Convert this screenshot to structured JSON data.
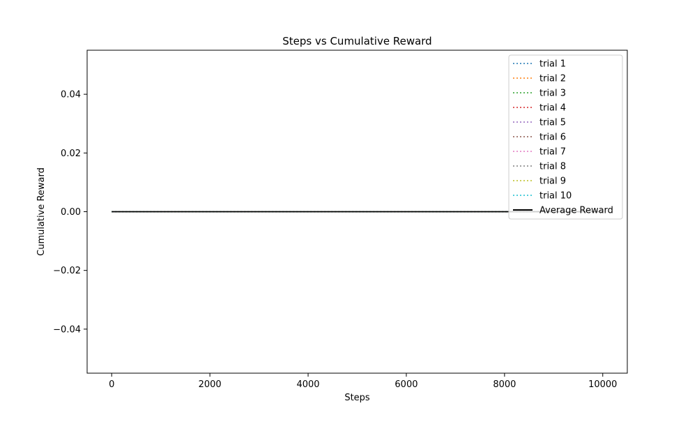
{
  "chart_data": {
    "type": "line",
    "title": "Steps vs Cumulative Reward",
    "xlabel": "Steps",
    "ylabel": "Cumulative Reward",
    "xlim": [
      -500,
      10500
    ],
    "ylim": [
      -0.055,
      0.055
    ],
    "xticks": [
      0,
      2000,
      4000,
      6000,
      8000,
      10000
    ],
    "xtick_labels": [
      "0",
      "2000",
      "4000",
      "6000",
      "8000",
      "10000"
    ],
    "yticks": [
      -0.04,
      -0.02,
      0.0,
      0.02,
      0.04
    ],
    "ytick_labels": [
      "−0.04",
      "−0.02",
      "0.00",
      "0.02",
      "0.04"
    ],
    "grid": false,
    "legend_position": "top-right",
    "series": [
      {
        "name": "trial 1",
        "color": "#1f77b4",
        "style": "dotted",
        "x": [
          0,
          10000
        ],
        "y": [
          0,
          0
        ]
      },
      {
        "name": "trial 2",
        "color": "#ff7f0e",
        "style": "dotted",
        "x": [
          0,
          10000
        ],
        "y": [
          0,
          0
        ]
      },
      {
        "name": "trial 3",
        "color": "#2ca02c",
        "style": "dotted",
        "x": [
          0,
          10000
        ],
        "y": [
          0,
          0
        ]
      },
      {
        "name": "trial 4",
        "color": "#d62728",
        "style": "dotted",
        "x": [
          0,
          10000
        ],
        "y": [
          0,
          0
        ]
      },
      {
        "name": "trial 5",
        "color": "#9467bd",
        "style": "dotted",
        "x": [
          0,
          10000
        ],
        "y": [
          0,
          0
        ]
      },
      {
        "name": "trial 6",
        "color": "#8c564b",
        "style": "dotted",
        "x": [
          0,
          10000
        ],
        "y": [
          0,
          0
        ]
      },
      {
        "name": "trial 7",
        "color": "#e377c2",
        "style": "dotted",
        "x": [
          0,
          10000
        ],
        "y": [
          0,
          0
        ]
      },
      {
        "name": "trial 8",
        "color": "#7f7f7f",
        "style": "dotted",
        "x": [
          0,
          10000
        ],
        "y": [
          0,
          0
        ]
      },
      {
        "name": "trial 9",
        "color": "#bcbd22",
        "style": "dotted",
        "x": [
          0,
          10000
        ],
        "y": [
          0,
          0
        ]
      },
      {
        "name": "trial 10",
        "color": "#17becf",
        "style": "dotted",
        "x": [
          0,
          10000
        ],
        "y": [
          0,
          0
        ]
      },
      {
        "name": "Average Reward",
        "color": "#000000",
        "style": "solid",
        "x": [
          0,
          10000
        ],
        "y": [
          0,
          0
        ]
      }
    ]
  }
}
